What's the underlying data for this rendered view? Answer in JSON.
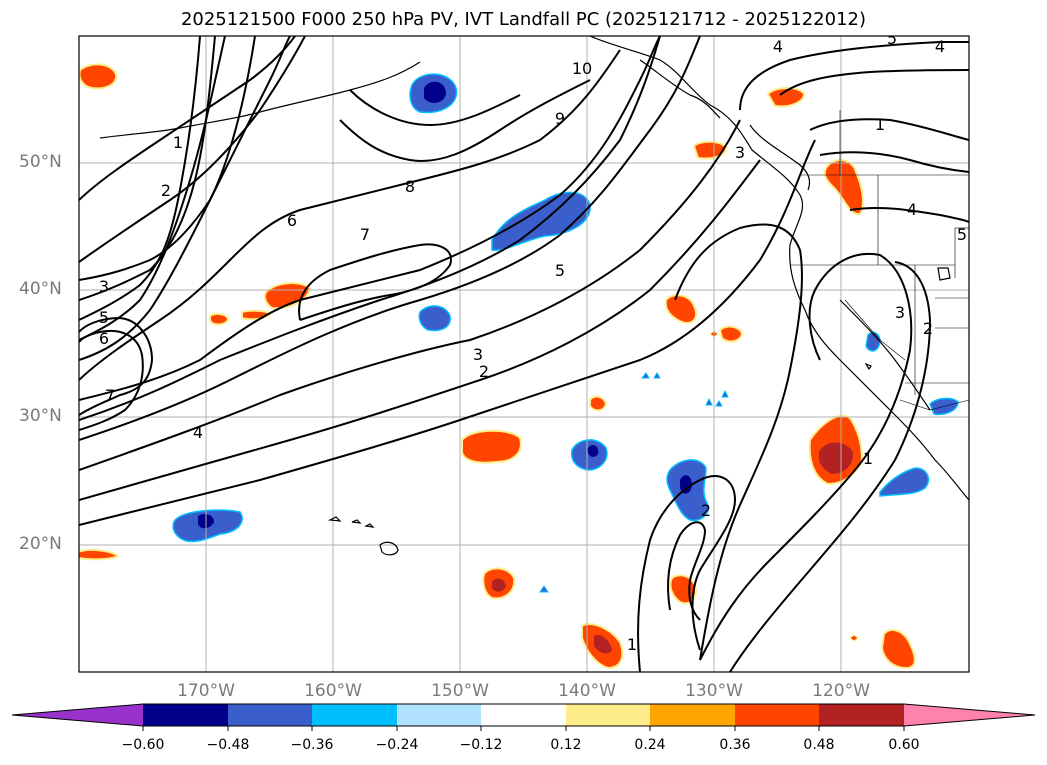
{
  "title": "2025121500 F000 250 hPa PV, IVT Landfall PC (2025121712 - 2025122012)",
  "lat_labels": [
    "50°N",
    "40°N",
    "30°N",
    "20°N"
  ],
  "lon_labels": [
    "170°W",
    "160°W",
    "150°W",
    "140°W",
    "130°W",
    "120°W"
  ],
  "contour_labels": [
    "1",
    "2",
    "3",
    "4",
    "5",
    "6",
    "7",
    "8",
    "9",
    "10",
    "5",
    "4",
    "3",
    "2",
    "1",
    "1",
    "2",
    "3",
    "5",
    "6",
    "7",
    "4",
    "1",
    "2",
    "3",
    "4",
    "5"
  ],
  "colorbar": {
    "ticks": [
      "−0.60",
      "−0.48",
      "−0.36",
      "−0.24",
      "−0.12",
      "0.12",
      "0.24",
      "0.36",
      "0.48",
      "0.60"
    ],
    "colors": [
      "#9932cc",
      "#00008b",
      "#3a5fcd",
      "#00bfff",
      "#b0e2ff",
      "#ffffff",
      "#ffec8b",
      "#ffa500",
      "#ff4500",
      "#b22222",
      "#ff82ab"
    ]
  },
  "colors": {
    "contour": "#000000",
    "grid": "#b0b0b0",
    "coast": "#000000"
  }
}
